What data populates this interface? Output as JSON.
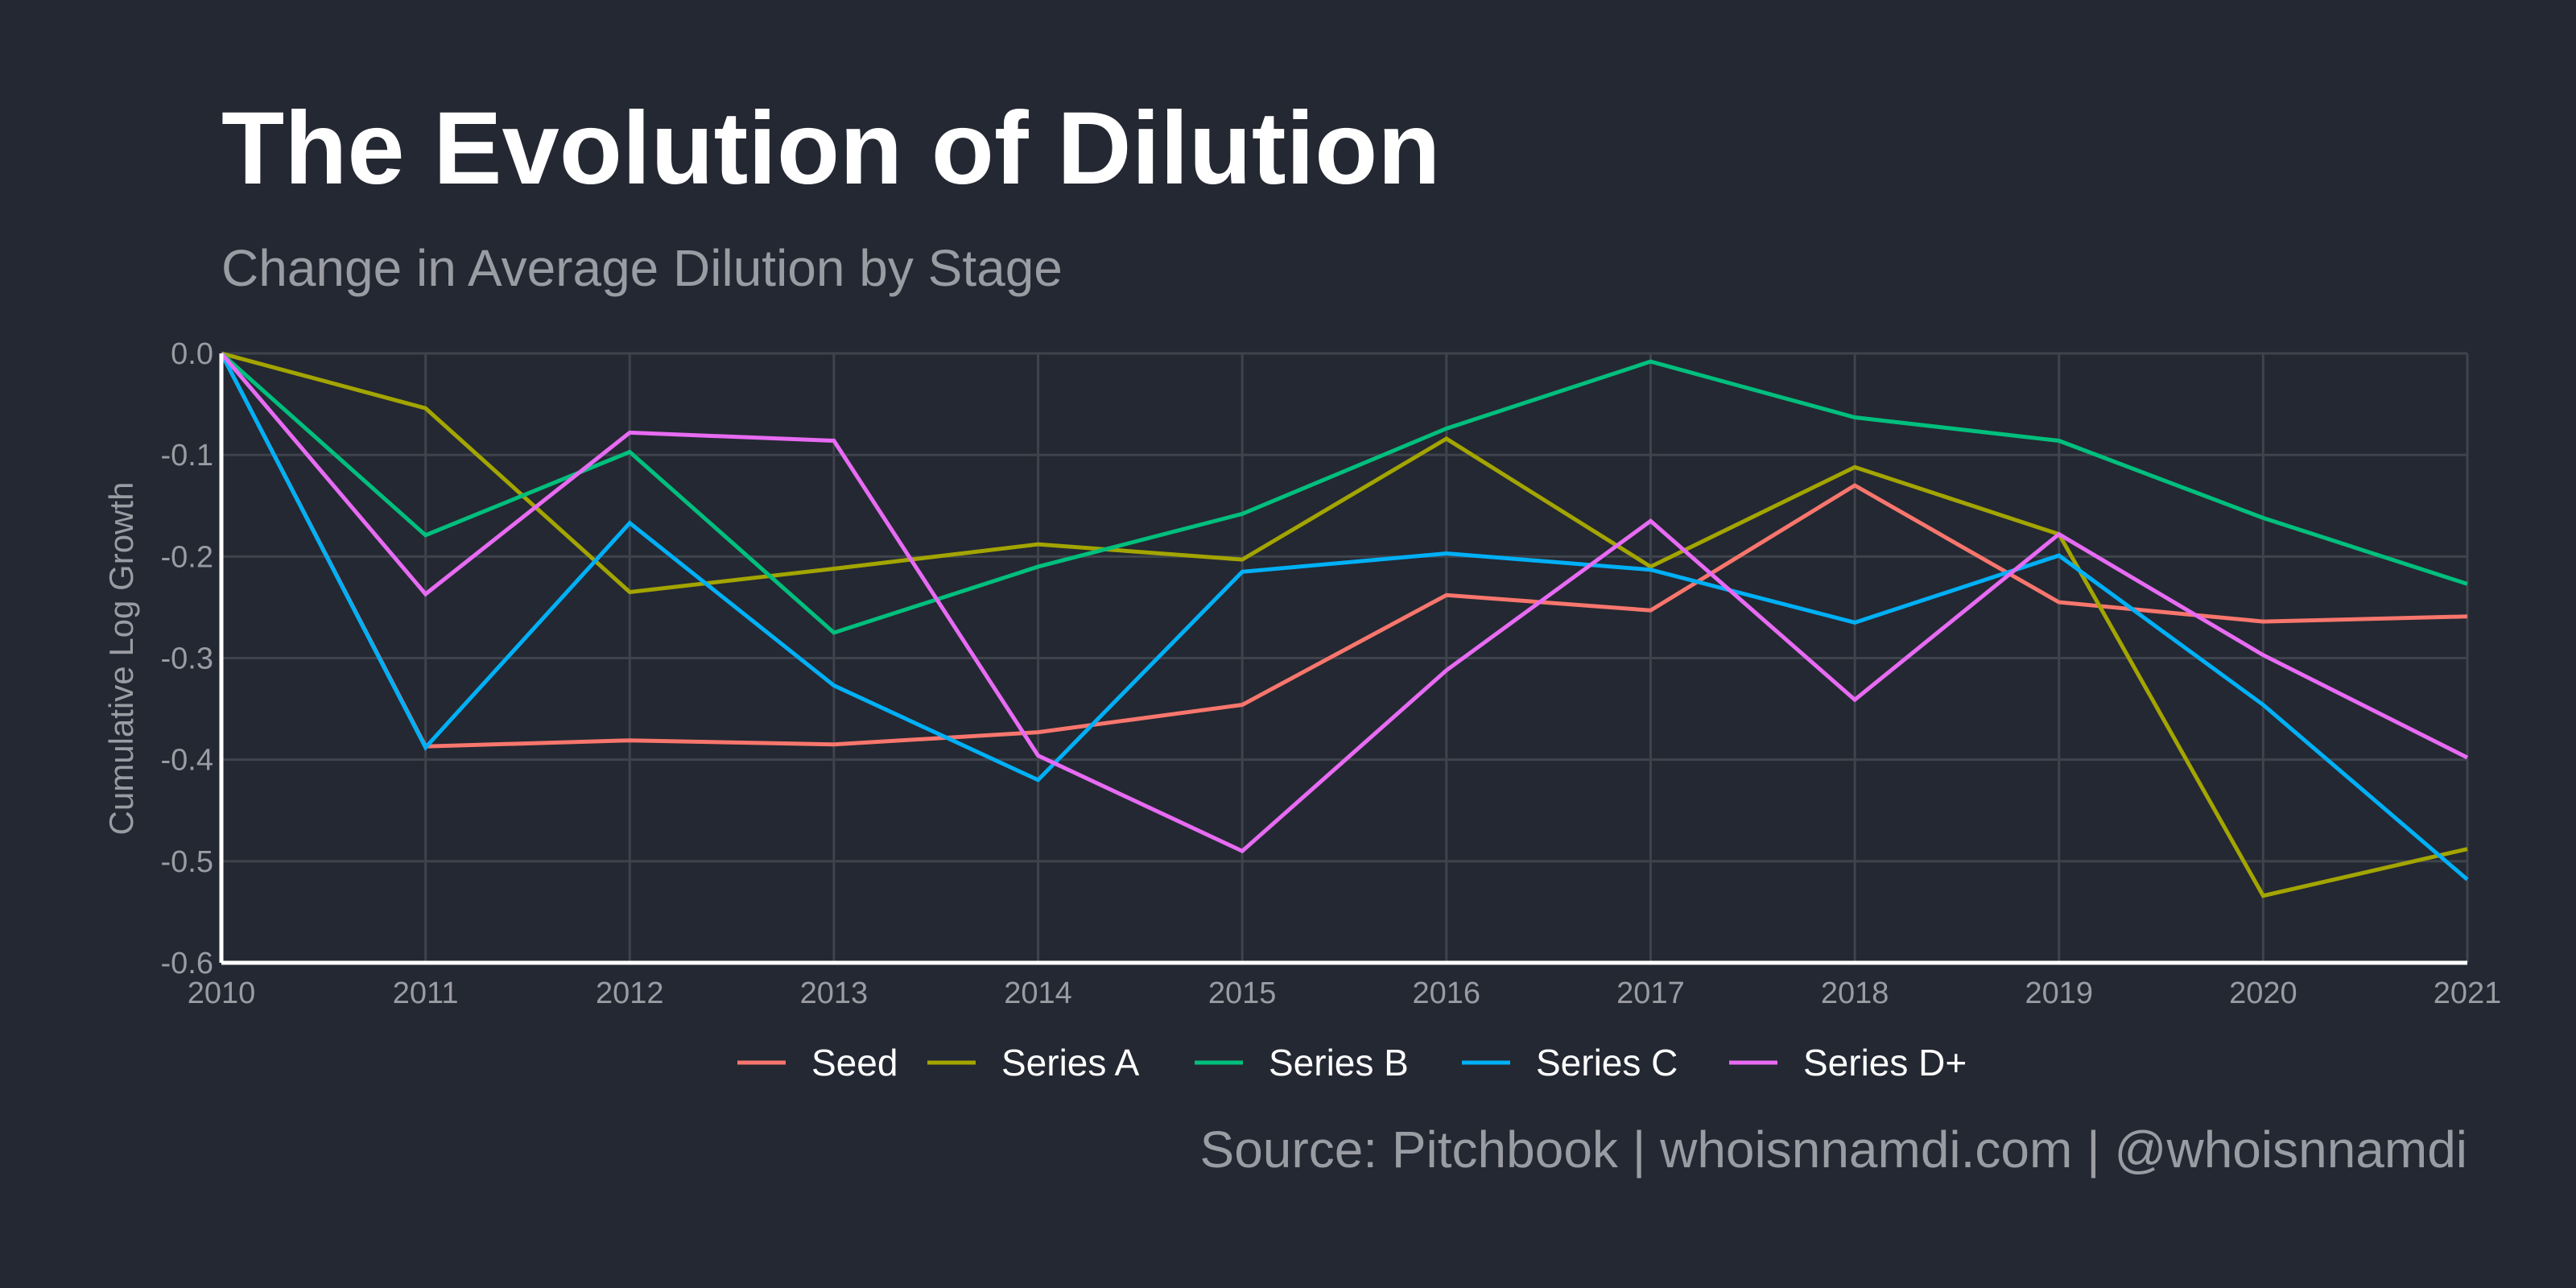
{
  "chart_data": {
    "type": "line",
    "title": "The Evolution of Dilution",
    "subtitle": "Change in Average Dilution by Stage",
    "xlabel": "",
    "ylabel": "Cumulative Log Growth",
    "caption": "Source: Pitchbook | whoisnnamdi.com | @whoisnnamdi",
    "x": [
      2010,
      2011,
      2012,
      2013,
      2014,
      2015,
      2016,
      2017,
      2018,
      2019,
      2020,
      2021
    ],
    "xlim": [
      2010,
      2021
    ],
    "ylim": [
      -0.6,
      0.0
    ],
    "x_ticks": [
      "2010",
      "2011",
      "2012",
      "2013",
      "2014",
      "2015",
      "2016",
      "2017",
      "2018",
      "2019",
      "2020",
      "2021"
    ],
    "y_ticks": [
      "0.0",
      "-0.1",
      "-0.2",
      "-0.3",
      "-0.4",
      "-0.5",
      "-0.6"
    ],
    "grid": true,
    "legend_position": "bottom",
    "background": "#242832",
    "series": [
      {
        "name": "Seed",
        "color": "#F8766D",
        "values": [
          0,
          -0.387,
          -0.381,
          -0.385,
          -0.373,
          -0.346,
          -0.238,
          -0.253,
          -0.13,
          -0.245,
          -0.264,
          -0.259
        ]
      },
      {
        "name": "Series A",
        "color": "#A3A500",
        "values": [
          0,
          -0.054,
          -0.235,
          -0.212,
          -0.188,
          -0.203,
          -0.084,
          -0.21,
          -0.112,
          -0.178,
          -0.534,
          -0.488
        ]
      },
      {
        "name": "Series B",
        "color": "#00BF7D",
        "values": [
          0,
          -0.179,
          -0.097,
          -0.275,
          -0.21,
          -0.158,
          -0.074,
          -0.008,
          -0.063,
          -0.086,
          -0.162,
          -0.227
        ]
      },
      {
        "name": "Series C",
        "color": "#00B0F6",
        "values": [
          0,
          -0.388,
          -0.167,
          -0.327,
          -0.42,
          -0.215,
          -0.197,
          -0.213,
          -0.265,
          -0.199,
          -0.346,
          -0.518
        ]
      },
      {
        "name": "Series D+",
        "color": "#E76BF3",
        "values": [
          0,
          -0.237,
          -0.078,
          -0.086,
          -0.396,
          -0.49,
          -0.312,
          -0.165,
          -0.341,
          -0.178,
          -0.297,
          -0.398
        ]
      }
    ]
  }
}
